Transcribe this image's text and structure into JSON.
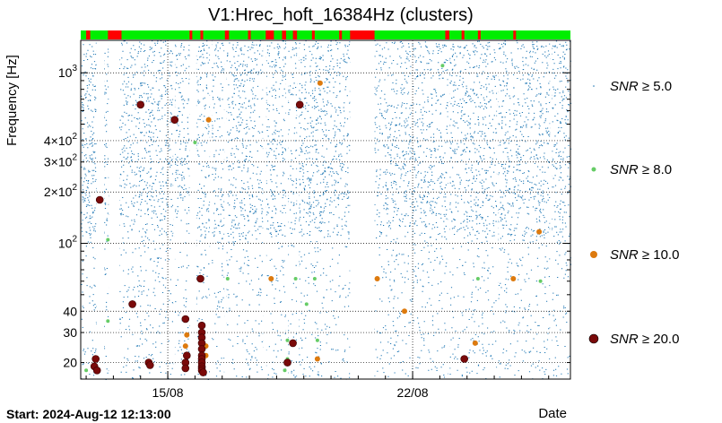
{
  "chart_data": {
    "type": "scatter",
    "title": "V1:Hrec_hoft_16384Hz (clusters)",
    "xlabel": "Date",
    "ylabel": "Frequency [Hz]",
    "start_label": "Start: 2024-Aug-12 12:13:00",
    "x_unit": "days since 2024-Aug-12 12:13:00",
    "xlim": [
      0,
      18
    ],
    "ylim": [
      16,
      1550
    ],
    "yscale": "log",
    "x_ticks": [
      {
        "value": 3.2,
        "label": "15/08"
      },
      {
        "value": 12.2,
        "label": "22/08"
      }
    ],
    "y_ticks": [
      {
        "value": 20,
        "label": "20"
      },
      {
        "value": 30,
        "label": "30"
      },
      {
        "value": 40,
        "label": "40"
      },
      {
        "value": 100,
        "label": "10",
        "exp": "2"
      },
      {
        "value": 200,
        "label": "2×10",
        "exp": "2"
      },
      {
        "value": 300,
        "label": "3×10",
        "exp": "2"
      },
      {
        "value": 400,
        "label": "4×10",
        "exp": "2"
      },
      {
        "value": 1000,
        "label": "10",
        "exp": "3"
      }
    ],
    "grid": true,
    "colors": {
      "snr5": "#1f77b4",
      "snr8": "#66cc66",
      "snr10": "#dd7a0e",
      "snr20": "#7a0a0a",
      "state_good": "#00ee00",
      "state_bad": "#ff0000"
    },
    "gap_intervals": [
      [
        0.58,
        0.86
      ],
      [
        1.03,
        1.42
      ],
      [
        3.4,
        3.46
      ],
      [
        4.0,
        4.25
      ],
      [
        4.75,
        4.82
      ],
      [
        5.28,
        5.36
      ],
      [
        6.7,
        6.82
      ],
      [
        7.55,
        7.62
      ],
      [
        7.95,
        8.02
      ],
      [
        9.9,
        10.8
      ],
      [
        13.5,
        13.56
      ],
      [
        15.3,
        15.35
      ],
      [
        17.25,
        17.32
      ]
    ],
    "state_bad_intervals": [
      [
        0.2,
        0.35
      ],
      [
        1.0,
        1.5
      ],
      [
        4.0,
        4.1
      ],
      [
        4.4,
        4.5
      ],
      [
        5.3,
        5.45
      ],
      [
        6.15,
        6.25
      ],
      [
        6.8,
        7.1
      ],
      [
        7.4,
        7.55
      ],
      [
        7.8,
        7.95
      ],
      [
        8.5,
        8.6
      ],
      [
        9.5,
        9.6
      ],
      [
        9.9,
        10.8
      ],
      [
        13.4,
        13.55
      ],
      [
        14.0,
        14.1
      ],
      [
        14.6,
        14.7
      ],
      [
        15.9,
        16.0
      ]
    ],
    "series": [
      {
        "name": "SNR ≥ 5.0",
        "legend_label": "SNR",
        "legend_threshold": "≥ 5.0",
        "color_key": "snr5",
        "marker_size": 1,
        "points": []
      },
      {
        "name": "SNR ≥ 8.0",
        "legend_label": "SNR",
        "legend_threshold": "≥ 8.0",
        "color_key": "snr8",
        "marker_size": 4,
        "points": [
          [
            0.2,
            18
          ],
          [
            1.0,
            35
          ],
          [
            1.0,
            105
          ],
          [
            4.2,
            390
          ],
          [
            5.4,
            62
          ],
          [
            7.5,
            18
          ],
          [
            7.6,
            27
          ],
          [
            7.9,
            62
          ],
          [
            8.3,
            44
          ],
          [
            8.6,
            62
          ],
          [
            8.7,
            27
          ],
          [
            14.6,
            62
          ],
          [
            16.9,
            60
          ],
          [
            4.4,
            20
          ],
          [
            13.3,
            1100
          ],
          [
            7.6,
            21
          ]
        ]
      },
      {
        "name": "SNR ≥ 10.0",
        "legend_label": "SNR",
        "legend_threshold": "≥ 10.0",
        "color_key": "snr10",
        "marker_size": 6,
        "points": [
          [
            3.85,
            25
          ],
          [
            3.9,
            29
          ],
          [
            4.6,
            25
          ],
          [
            4.6,
            22
          ],
          [
            4.7,
            530
          ],
          [
            7.0,
            62
          ],
          [
            8.7,
            21
          ],
          [
            8.8,
            870
          ],
          [
            10.9,
            62
          ],
          [
            11.9,
            40
          ],
          [
            14.5,
            26
          ],
          [
            15.9,
            62
          ],
          [
            16.85,
            117
          ]
        ]
      },
      {
        "name": "SNR ≥ 20.0",
        "legend_label": "SNR",
        "legend_threshold": "≥ 20.0",
        "color_key": "snr20",
        "marker_size": 8,
        "points": [
          [
            0.5,
            19
          ],
          [
            0.55,
            21
          ],
          [
            0.6,
            18
          ],
          [
            0.7,
            180
          ],
          [
            1.9,
            44
          ],
          [
            2.2,
            650
          ],
          [
            2.5,
            20
          ],
          [
            2.55,
            19.3
          ],
          [
            3.45,
            530
          ],
          [
            3.85,
            36
          ],
          [
            3.85,
            20
          ],
          [
            3.85,
            18.5
          ],
          [
            3.9,
            22
          ],
          [
            4.4,
            62
          ],
          [
            4.45,
            33
          ],
          [
            4.45,
            30
          ],
          [
            4.45,
            28
          ],
          [
            4.45,
            26
          ],
          [
            4.45,
            24
          ],
          [
            4.45,
            22
          ],
          [
            4.45,
            21
          ],
          [
            4.45,
            20
          ],
          [
            4.45,
            19
          ],
          [
            4.45,
            18.5
          ],
          [
            4.45,
            18
          ],
          [
            4.5,
            17.5
          ],
          [
            7.6,
            20
          ],
          [
            7.8,
            26
          ],
          [
            8.05,
            650
          ],
          [
            14.1,
            21
          ]
        ]
      }
    ]
  }
}
